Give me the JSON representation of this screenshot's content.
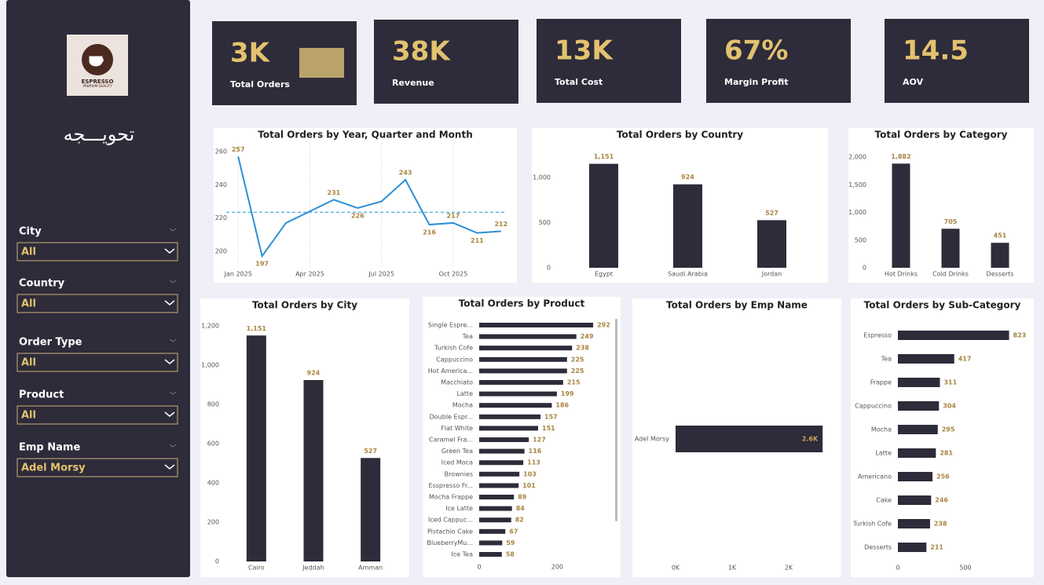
{
  "sidebar": {
    "logo_title": "ESPRESSO",
    "logo_subtitle": "PREMIUM QUALITY",
    "brand": "تحويـــجه",
    "filters": [
      {
        "label": "City",
        "value": "All"
      },
      {
        "label": "Country",
        "value": "All"
      },
      {
        "label": "Order Type",
        "value": "All"
      },
      {
        "label": "Product",
        "value": "All"
      },
      {
        "label": "Emp Name",
        "value": "Adel Morsy"
      }
    ]
  },
  "kpis": [
    {
      "value": "3K",
      "label": "Total Orders"
    },
    {
      "value": "38K",
      "label": "Revenue"
    },
    {
      "value": "13K",
      "label": "Total Cost"
    },
    {
      "value": "67%",
      "label": "Margin Profit"
    },
    {
      "value": "14.5",
      "label": "AOV"
    }
  ],
  "chart_data": [
    {
      "type": "line",
      "title": "Total Orders by Year, Quarter and Month",
      "color": "#2b8fd6",
      "label_color": "#a88540",
      "categories": [
        "Jan 2025",
        null,
        null,
        "Apr 2025",
        null,
        null,
        "Jul 2025",
        null,
        null,
        "Oct 2025",
        null,
        null
      ],
      "values": [
        257,
        197,
        217,
        224,
        231,
        226,
        230,
        243,
        216,
        217,
        211,
        212
      ],
      "value_labels": [
        "257",
        "197",
        null,
        null,
        "231",
        "226",
        null,
        "243",
        "216",
        "217",
        "211",
        "212"
      ],
      "average": 223.4,
      "ylim": [
        190,
        265
      ],
      "yticks": [
        200,
        220,
        240,
        260
      ],
      "xgrid": true
    },
    {
      "type": "bar",
      "title": "Total Orders by Country",
      "color": "#2e2b3a",
      "label_color": "#a88540",
      "categories": [
        "Egypt",
        "Saudi Arabia",
        "Jordan"
      ],
      "values": [
        1151,
        924,
        527
      ],
      "value_labels": [
        "1,151",
        "924",
        "527"
      ],
      "ylim": [
        0,
        1300
      ],
      "yticks": [
        0,
        500,
        {
          "value": 1000,
          "label": "1,000"
        }
      ]
    },
    {
      "type": "bar",
      "title": "Total Orders by Category",
      "color": "#2e2b3a",
      "label_color": "#a88540",
      "categories": [
        "Hot Drinks",
        "Cold Drinks",
        "Desserts"
      ],
      "values": [
        1882,
        705,
        451
      ],
      "value_labels": [
        "1,882",
        "705",
        "451"
      ],
      "ylim": [
        0,
        2100
      ],
      "yticks": [
        0,
        500,
        {
          "value": 1000,
          "label": "1,000"
        },
        {
          "value": 1500,
          "label": "1,500"
        },
        {
          "value": 2000,
          "label": "2,000"
        }
      ]
    },
    {
      "type": "bar",
      "title": "Total Orders by City",
      "color": "#2e2b3a",
      "label_color": "#a88540",
      "categories": [
        "Cairo",
        "Jeddah",
        "Amman"
      ],
      "values": [
        1151,
        924,
        527
      ],
      "value_labels": [
        "1,151",
        "924",
        "527"
      ],
      "ylim": [
        0,
        1300
      ],
      "yticks": [
        0,
        200,
        400,
        600,
        800,
        {
          "value": 1000,
          "label": "1,000"
        },
        {
          "value": 1200,
          "label": "1,200"
        }
      ]
    },
    {
      "type": "barh",
      "title": "Total Orders by Product",
      "color": "#2e2b3a",
      "label_color": "#a88540",
      "categories": [
        "Single Espre...",
        "Tea",
        "Turkish Cofe",
        "Cappuccino",
        "Hot America...",
        "Macchiato",
        "Latte",
        "Mocha",
        "Double Espr...",
        "Flat White",
        "Caramel Fra...",
        "Green Tea",
        "Iced Moca",
        "Brownies",
        "Esspresso Fr...",
        "Mocha Frappe",
        "Ice Latte",
        "Iced Cappuc...",
        "Pistachio Cake",
        "BlueberryMu...",
        "Ice Tea"
      ],
      "values": [
        292,
        249,
        238,
        225,
        225,
        215,
        199,
        186,
        157,
        151,
        127,
        116,
        113,
        103,
        101,
        89,
        84,
        82,
        67,
        59,
        58
      ],
      "xlim": [
        0,
        320
      ],
      "xticks": [
        0,
        200
      ]
    },
    {
      "type": "barh",
      "title": "Total Orders by Emp Name",
      "color": "#2e2b3a",
      "label_color": "#c9a860",
      "categories": [
        "Adel Morsy"
      ],
      "values": [
        2600
      ],
      "value_labels": [
        "2.6K"
      ],
      "xlim": [
        0,
        2800
      ],
      "xticks": [
        {
          "value": 0,
          "label": "0K"
        },
        {
          "value": 1000,
          "label": "1K"
        },
        {
          "value": 2000,
          "label": "2K"
        }
      ]
    },
    {
      "type": "barh",
      "title": "Total Orders by Sub-Category",
      "color": "#2e2b3a",
      "label_color": "#a88540",
      "categories": [
        "Espresso",
        "Tea",
        "Frappe",
        "Cappuccino",
        "Mocha",
        "Latte",
        "Americano",
        "Cake",
        "Turkish Cofe",
        "Desserts"
      ],
      "values": [
        823,
        417,
        311,
        304,
        295,
        281,
        256,
        246,
        238,
        211
      ],
      "xlim": [
        0,
        900
      ],
      "xticks": [
        0,
        500
      ]
    }
  ]
}
